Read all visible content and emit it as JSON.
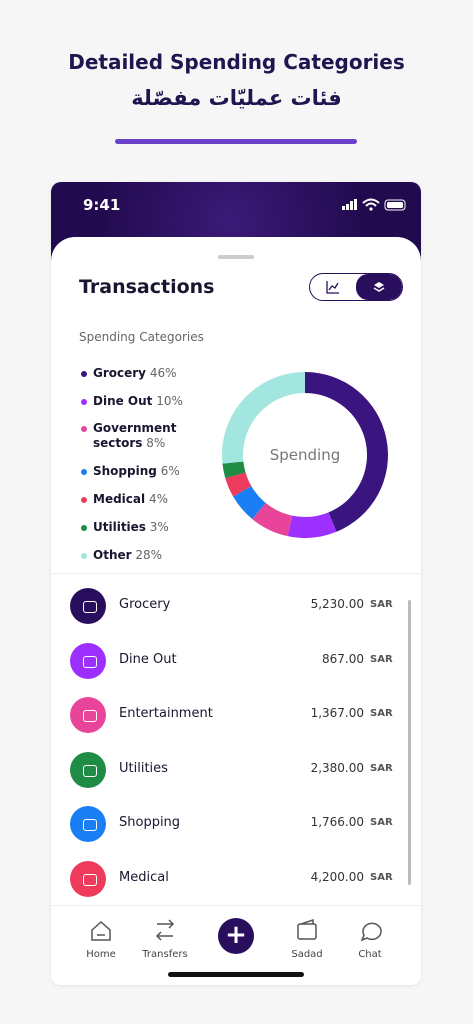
{
  "header": {
    "title": "Detailed Spending Categories",
    "subtitle": "فئات عمليّات مفصّلة"
  },
  "status": {
    "time": "9:41"
  },
  "screen": {
    "title": "Transactions",
    "section": "Spending Categories",
    "donut_label": "Spending"
  },
  "spending": {
    "categories": [
      "Grocery",
      "Dine Out",
      "Government sectors",
      "Shopping",
      "Medical",
      "Utilities",
      "Other"
    ],
    "values": [
      46,
      10,
      8,
      6,
      4,
      3,
      28
    ],
    "value_labels": [
      "46%",
      "10%",
      "8%",
      "6%",
      "4%",
      "3%",
      "28%"
    ],
    "colors": [
      "#3a1580",
      "#9b30ff",
      "#e8449a",
      "#1a7ef5",
      "#ef3b5b",
      "#1e8c45",
      "#a3e6df"
    ]
  },
  "transactions": [
    {
      "name": "Grocery",
      "amount": "5,230.00",
      "currency": "SAR"
    },
    {
      "name": "Dine Out",
      "amount": "867.00",
      "currency": "SAR"
    },
    {
      "name": "Entertainment",
      "amount": "1,367.00",
      "currency": "SAR"
    },
    {
      "name": "Utilities",
      "amount": "2,380.00",
      "currency": "SAR"
    },
    {
      "name": "Shopping",
      "amount": "1,766.00",
      "currency": "SAR"
    },
    {
      "name": "Medical",
      "amount": "4,200.00",
      "currency": "SAR"
    }
  ],
  "nav": [
    "Home",
    "Transfers",
    "Sadad",
    "Chat"
  ]
}
